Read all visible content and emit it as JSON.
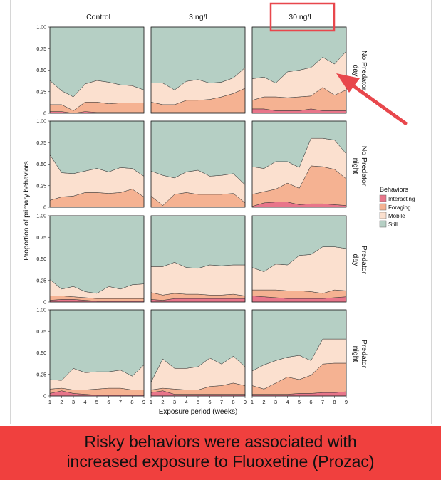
{
  "chart_data": {
    "type": "area",
    "subtype": "stacked-proportion small multiples",
    "columns": [
      "Control",
      "3 ng/l",
      "30 ng/l"
    ],
    "rows": [
      "No Predator day",
      "No Predator night",
      "Predator day",
      "Predator night"
    ],
    "x": [
      1,
      2,
      3,
      4,
      5,
      6,
      7,
      8,
      9
    ],
    "xlabel": "Exposure period (weeks)",
    "ylabel": "Proportion of primary behaviors",
    "ylim": [
      0,
      1
    ],
    "yticks": [
      "0",
      "0.25",
      "0.50",
      "0.75",
      "1.00"
    ],
    "legend": {
      "title": "Behaviors",
      "placement": "right",
      "items": [
        {
          "name": "Interacting",
          "color": "#e8758a"
        },
        {
          "name": "Foraging",
          "color": "#f5b292"
        },
        {
          "name": "Mobile",
          "color": "#fbe0cf"
        },
        {
          "name": "Still",
          "color": "#b5cfc4"
        }
      ]
    },
    "panels": [
      {
        "row": 0,
        "col": 0,
        "interacting": [
          0.02,
          0.02,
          0,
          0.02,
          0.01,
          0.01,
          0.01,
          0.01,
          0.01
        ],
        "foraging": [
          0.08,
          0.08,
          0.03,
          0.11,
          0.12,
          0.1,
          0.11,
          0.11,
          0.11
        ],
        "mobile": [
          0.28,
          0.16,
          0.16,
          0.21,
          0.25,
          0.25,
          0.21,
          0.2,
          0.15
        ]
      },
      {
        "row": 0,
        "col": 1,
        "interacting": [
          0.01,
          0.01,
          0.01,
          0.01,
          0.01,
          0.01,
          0.01,
          0.01,
          0.01
        ],
        "foraging": [
          0.12,
          0.09,
          0.09,
          0.14,
          0.14,
          0.15,
          0.18,
          0.22,
          0.28
        ],
        "mobile": [
          0.22,
          0.25,
          0.17,
          0.22,
          0.24,
          0.19,
          0.17,
          0.18,
          0.24
        ]
      },
      {
        "row": 0,
        "col": 2,
        "interacting": [
          0.05,
          0.05,
          0.03,
          0.03,
          0.03,
          0.05,
          0.03,
          0.03,
          0.03
        ],
        "foraging": [
          0.1,
          0.14,
          0.16,
          0.15,
          0.16,
          0.15,
          0.27,
          0.18,
          0.24
        ],
        "mobile": [
          0.25,
          0.23,
          0.16,
          0.3,
          0.31,
          0.33,
          0.35,
          0.36,
          0.45
        ]
      },
      {
        "row": 1,
        "col": 0,
        "interacting": [
          0,
          0,
          0,
          0,
          0,
          0,
          0,
          0,
          0
        ],
        "foraging": [
          0.08,
          0.12,
          0.13,
          0.17,
          0.17,
          0.16,
          0.17,
          0.21,
          0.12
        ],
        "mobile": [
          0.53,
          0.28,
          0.26,
          0.25,
          0.28,
          0.25,
          0.29,
          0.24,
          0.24
        ]
      },
      {
        "row": 1,
        "col": 1,
        "interacting": [
          0,
          0,
          0,
          0,
          0,
          0,
          0,
          0,
          0
        ],
        "foraging": [
          0.13,
          0.02,
          0.15,
          0.17,
          0.15,
          0.15,
          0.15,
          0.16,
          0.05
        ],
        "mobile": [
          0.29,
          0.35,
          0.19,
          0.24,
          0.28,
          0.21,
          0.22,
          0.23,
          0.21
        ]
      },
      {
        "row": 1,
        "col": 2,
        "interacting": [
          0.01,
          0.05,
          0.06,
          0.06,
          0.03,
          0.04,
          0.04,
          0.03,
          0.02
        ],
        "foraging": [
          0.14,
          0.13,
          0.15,
          0.22,
          0.19,
          0.44,
          0.43,
          0.41,
          0.31
        ],
        "mobile": [
          0.32,
          0.27,
          0.32,
          0.25,
          0.24,
          0.32,
          0.33,
          0.34,
          0.29
        ]
      },
      {
        "row": 2,
        "col": 0,
        "interacting": [
          0.02,
          0.03,
          0.03,
          0.02,
          0.01,
          0.01,
          0.01,
          0.01,
          0.01
        ],
        "foraging": [
          0.05,
          0.04,
          0.03,
          0.03,
          0.03,
          0.03,
          0.03,
          0.03,
          0.03
        ],
        "mobile": [
          0.19,
          0.08,
          0.12,
          0.07,
          0.06,
          0.14,
          0.11,
          0.16,
          0.17
        ]
      },
      {
        "row": 2,
        "col": 1,
        "interacting": [
          0.03,
          0.02,
          0.04,
          0.04,
          0.04,
          0.04,
          0.04,
          0.04,
          0.04
        ],
        "foraging": [
          0.08,
          0.06,
          0.06,
          0.05,
          0.05,
          0.04,
          0.04,
          0.05,
          0.03
        ],
        "mobile": [
          0.3,
          0.33,
          0.36,
          0.31,
          0.3,
          0.35,
          0.34,
          0.34,
          0.36
        ]
      },
      {
        "row": 2,
        "col": 2,
        "interacting": [
          0.07,
          0.06,
          0.05,
          0.04,
          0.04,
          0.04,
          0.04,
          0.05,
          0.06
        ],
        "foraging": [
          0.07,
          0.08,
          0.09,
          0.09,
          0.09,
          0.08,
          0.06,
          0.09,
          0.07
        ],
        "mobile": [
          0.26,
          0.21,
          0.3,
          0.3,
          0.41,
          0.43,
          0.54,
          0.5,
          0.49
        ]
      },
      {
        "row": 3,
        "col": 0,
        "interacting": [
          0.03,
          0.06,
          0.03,
          0.02,
          0.01,
          0.01,
          0.01,
          0.01,
          0.01
        ],
        "foraging": [
          0.05,
          0.03,
          0.04,
          0.05,
          0.07,
          0.08,
          0.08,
          0.06,
          0.06
        ],
        "mobile": [
          0.11,
          0.09,
          0.25,
          0.2,
          0.2,
          0.19,
          0.21,
          0.16,
          0.29
        ]
      },
      {
        "row": 3,
        "col": 1,
        "interacting": [
          0.04,
          0.06,
          0.02,
          0.02,
          0.02,
          0.02,
          0.02,
          0.02,
          0.02
        ],
        "foraging": [
          0.03,
          0.03,
          0.06,
          0.05,
          0.05,
          0.09,
          0.1,
          0.13,
          0.1
        ],
        "mobile": [
          0.09,
          0.34,
          0.24,
          0.25,
          0.27,
          0.33,
          0.25,
          0.31,
          0.22
        ]
      },
      {
        "row": 3,
        "col": 2,
        "interacting": [
          0.02,
          0.02,
          0.02,
          0.02,
          0.03,
          0.03,
          0.04,
          0.04,
          0.05
        ],
        "foraging": [
          0.1,
          0.06,
          0.13,
          0.2,
          0.16,
          0.21,
          0.33,
          0.34,
          0.33
        ],
        "mobile": [
          0.17,
          0.28,
          0.26,
          0.23,
          0.28,
          0.17,
          0.29,
          0.28,
          0.28
        ]
      }
    ],
    "annotation": {
      "highlight_column": "30 ng/l",
      "arrow_target": "No Predator day, 30 ng/l panel",
      "highlight_color": "#e8474c"
    }
  },
  "caption": {
    "line1": "Risky behaviors were associated with",
    "line2": "increased exposure to Fluoxetine (Prozac)",
    "background": "#f0403e"
  }
}
